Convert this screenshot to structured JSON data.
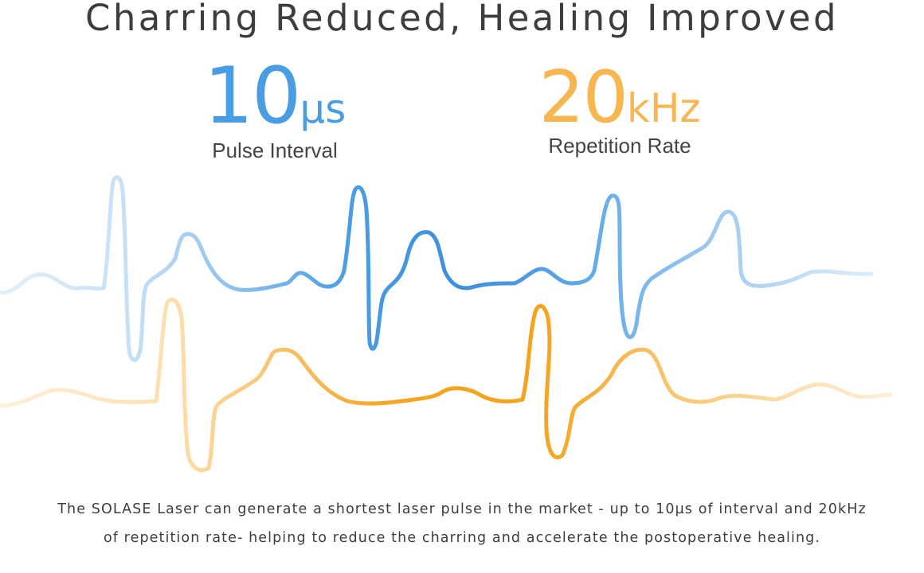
{
  "title": "Charring Reduced, Healing Improved",
  "stats": [
    {
      "value": "10",
      "unit": "µs",
      "label": "Pulse Interval"
    },
    {
      "value": "20",
      "unit": "kHz",
      "label": "Repetition Rate"
    }
  ],
  "description": {
    "line1": "The SOLASE Laser can generate a shortest laser pulse in the market - up to 10µs of interval and 20kHz",
    "line2": "of repetition rate- helping to reduce the charring and accelerate the postoperative healing."
  },
  "colors": {
    "blue": "#4a9ce3",
    "blue_light": "#cfe6f9",
    "orange": "#f5a623",
    "orange_light": "#fde3b8",
    "text": "#3d3d3d"
  }
}
